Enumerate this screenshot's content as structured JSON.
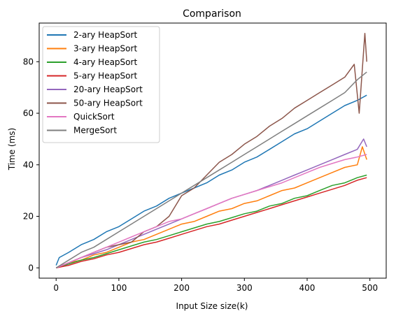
{
  "chart_data": {
    "type": "line",
    "title": "Comparison",
    "xlabel": "Input Size size(k)",
    "ylabel": "Time (ms)",
    "xlim": [
      -27,
      526
    ],
    "ylim": [
      -4,
      95
    ],
    "xticks": [
      0,
      100,
      200,
      300,
      400,
      500
    ],
    "yticks": [
      0,
      20,
      40,
      60,
      80
    ],
    "grid": false,
    "legend_position": "top-left",
    "series": [
      {
        "name": "2-ary HeapSort",
        "color": "#1f77b4",
        "x": [
          0,
          5,
          20,
          40,
          60,
          80,
          100,
          120,
          140,
          160,
          180,
          200,
          220,
          240,
          260,
          280,
          300,
          320,
          340,
          360,
          380,
          400,
          420,
          440,
          460,
          480,
          495
        ],
        "y": [
          1,
          4,
          6,
          9,
          11,
          14,
          16,
          19,
          22,
          24,
          27,
          29,
          31,
          33,
          36,
          38,
          41,
          43,
          46,
          49,
          52,
          54,
          57,
          60,
          63,
          65,
          67
        ]
      },
      {
        "name": "3-ary HeapSort",
        "color": "#ff7f0e",
        "x": [
          0,
          20,
          40,
          60,
          80,
          100,
          120,
          140,
          160,
          180,
          200,
          220,
          240,
          260,
          280,
          300,
          320,
          340,
          360,
          380,
          400,
          420,
          440,
          460,
          480,
          488,
          495
        ],
        "y": [
          0,
          2,
          3,
          5,
          6,
          8,
          10,
          11,
          13,
          15,
          17,
          18,
          20,
          22,
          23,
          25,
          26,
          28,
          30,
          31,
          33,
          35,
          37,
          39,
          40,
          47,
          42
        ]
      },
      {
        "name": "4-ary HeapSort",
        "color": "#2ca02c",
        "x": [
          0,
          20,
          40,
          60,
          80,
          100,
          120,
          140,
          160,
          180,
          200,
          220,
          240,
          260,
          280,
          300,
          320,
          340,
          360,
          380,
          400,
          420,
          440,
          460,
          480,
          495
        ],
        "y": [
          0,
          1.5,
          3,
          4,
          5.5,
          7,
          8.5,
          10,
          11,
          12.5,
          14,
          15.5,
          17,
          18,
          19.5,
          21,
          22,
          24,
          25,
          27,
          28,
          30,
          32,
          33,
          35,
          36
        ]
      },
      {
        "name": "5-ary HeapSort",
        "color": "#d62728",
        "x": [
          0,
          20,
          40,
          60,
          80,
          100,
          120,
          140,
          160,
          180,
          200,
          220,
          240,
          260,
          280,
          300,
          320,
          340,
          360,
          380,
          400,
          420,
          440,
          460,
          480,
          495
        ],
        "y": [
          0,
          1,
          2.5,
          3.5,
          5,
          6,
          7.5,
          9,
          10,
          11.5,
          13,
          14.5,
          16,
          17,
          18.5,
          20,
          21.5,
          23,
          24.5,
          26,
          27.5,
          29,
          30.5,
          32,
          34,
          35
        ]
      },
      {
        "name": "20-ary HeapSort",
        "color": "#9467bd",
        "x": [
          0,
          20,
          40,
          60,
          80,
          100,
          120,
          140,
          160,
          180,
          200,
          220,
          240,
          260,
          280,
          300,
          320,
          340,
          360,
          380,
          400,
          420,
          440,
          460,
          480,
          490,
          495
        ],
        "y": [
          0,
          2,
          4,
          5.5,
          7,
          9,
          11,
          13,
          15,
          17,
          19,
          21,
          23,
          25,
          27,
          28.5,
          30,
          32,
          34,
          36,
          38,
          40,
          42,
          44,
          46,
          50,
          47
        ]
      },
      {
        "name": "50-ary HeapSort",
        "color": "#8c564b",
        "x": [
          0,
          20,
          40,
          60,
          80,
          100,
          120,
          140,
          160,
          180,
          200,
          220,
          240,
          260,
          280,
          300,
          320,
          340,
          360,
          380,
          400,
          420,
          440,
          460,
          475,
          483,
          492,
          495
        ],
        "y": [
          0,
          2,
          4,
          6,
          8,
          9,
          10,
          14,
          16,
          20,
          28,
          31,
          36,
          41,
          44,
          48,
          51,
          55,
          58,
          62,
          65,
          68,
          71,
          74,
          79,
          60,
          91,
          80
        ]
      },
      {
        "name": "QuickSort",
        "color": "#e377c2",
        "x": [
          0,
          20,
          40,
          60,
          80,
          100,
          120,
          140,
          160,
          180,
          200,
          220,
          240,
          260,
          280,
          300,
          320,
          340,
          360,
          380,
          400,
          420,
          440,
          460,
          480,
          495
        ],
        "y": [
          0,
          2,
          4,
          6,
          8,
          10,
          12,
          14,
          16,
          18,
          19,
          21,
          23,
          25,
          27,
          28.5,
          30,
          31.5,
          33,
          35,
          37,
          39,
          40.5,
          42,
          43,
          44
        ]
      },
      {
        "name": "MergeSort",
        "color": "#7f7f7f",
        "x": [
          0,
          20,
          40,
          60,
          80,
          100,
          120,
          140,
          160,
          180,
          200,
          220,
          240,
          260,
          280,
          300,
          320,
          340,
          360,
          380,
          400,
          420,
          440,
          460,
          480,
          495
        ],
        "y": [
          0,
          3,
          6,
          8,
          11,
          14,
          17,
          20,
          23,
          26,
          29,
          32,
          35,
          38,
          41,
          44,
          47,
          50,
          53,
          56,
          59,
          62,
          65,
          68,
          73,
          76
        ]
      }
    ]
  }
}
